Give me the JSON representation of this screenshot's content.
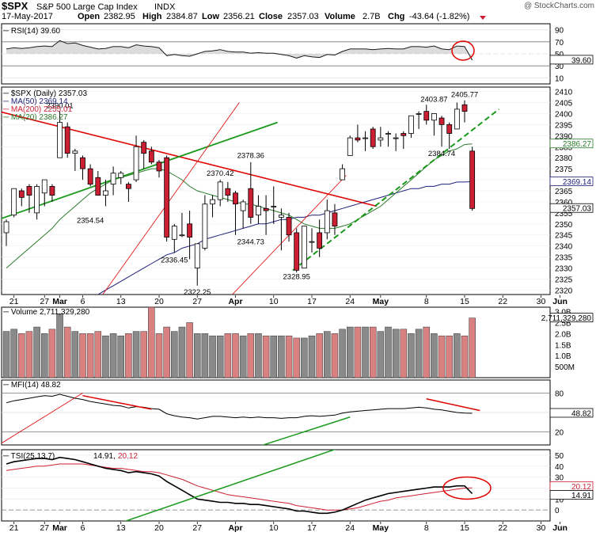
{
  "header": {
    "symbol": "$SPX",
    "name": "S&P 500 Large Cap Index",
    "exchange": "INDX",
    "watermark": "@ StockCharts.com",
    "date": "17-May-2017",
    "open_label": "Open",
    "open": "2382.95",
    "high_label": "High",
    "high": "2384.87",
    "low_label": "Low",
    "low": "2356.21",
    "close_label": "Close",
    "close": "2357.03",
    "volume_label": "Volume",
    "volume": "2.7B",
    "chg_label": "Chg",
    "chg": "-43.64 (-1.82%)"
  },
  "colors": {
    "up": "#ffffff",
    "down": "#cc1f33",
    "candle_outline": "#000000",
    "ma50": "#1f1f7a",
    "ma200": "#cc1f33",
    "ma20": "#2a7a2a",
    "trend_red": "#e00000",
    "trend_green": "#1a9a1a",
    "vol_up": "#8a8a8a",
    "vol_down": "#d98080",
    "grid": "#dddddd"
  },
  "rsi_panel": {
    "label": "RSI(14) 39.60",
    "ticks": [
      "90",
      "70",
      "50",
      "30",
      "10"
    ],
    "value_tag": "39.60"
  },
  "price_panel": {
    "label": "$SPX (Daily) 2357.03",
    "ma50_label": "MA(50) 2369.14",
    "ma200_label": "MA(200) 2255.01",
    "ma20_label": "MA(20) 2386.27",
    "ticks": [
      "2410",
      "2405",
      "2400",
      "2395",
      "2390",
      "2385",
      "2380",
      "2375",
      "2370",
      "2365",
      "2360",
      "2355",
      "2350",
      "2345",
      "2340",
      "2335",
      "2330",
      "2325",
      "2320"
    ],
    "tags": {
      "ma20": "2386.27",
      "ma50": "2369.14",
      "close": "2357.03"
    },
    "annotations": [
      "2390.01",
      "2354.54",
      "2336.45",
      "2322.25",
      "2370.42",
      "2344.73",
      "2378.36",
      "2328.95",
      "2403.87",
      "2405.77",
      "2384.74"
    ]
  },
  "x_axis": {
    "labels": [
      "21",
      "27",
      "Mar",
      "6",
      "13",
      "20",
      "27",
      "Apr",
      "10",
      "17",
      "24",
      "May",
      "8",
      "15",
      "22",
      "30",
      "Jun"
    ]
  },
  "volume_panel": {
    "label": "Volume 2,711,329,280",
    "ticks": [
      "3.0B",
      "2.5B",
      "2.0B",
      "1.5B",
      "1.0B",
      "500M"
    ],
    "value_tag": "2,711,329,280"
  },
  "mfi_panel": {
    "label": "MFI(14) 48.82",
    "ticks": [
      "80",
      "50",
      "20"
    ],
    "value_tag": "48.82"
  },
  "tsi_panel": {
    "label": "TSI(25,13,7)",
    "value_1": "14.91",
    "value_2": "20.12",
    "ticks": [
      "50",
      "40",
      "30",
      "20",
      "10",
      "0"
    ],
    "tags": [
      "20.12",
      "14.91"
    ]
  },
  "chart_data": {
    "type": "candlestick",
    "title": "$SPX S&P 500 Large Cap Index INDX",
    "x": [
      "2017-02-17",
      "2017-02-21",
      "2017-02-22",
      "2017-02-23",
      "2017-02-24",
      "2017-02-27",
      "2017-02-28",
      "2017-03-01",
      "2017-03-02",
      "2017-03-03",
      "2017-03-06",
      "2017-03-07",
      "2017-03-08",
      "2017-03-09",
      "2017-03-10",
      "2017-03-13",
      "2017-03-14",
      "2017-03-15",
      "2017-03-16",
      "2017-03-17",
      "2017-03-20",
      "2017-03-21",
      "2017-03-22",
      "2017-03-23",
      "2017-03-24",
      "2017-03-27",
      "2017-03-28",
      "2017-03-29",
      "2017-03-30",
      "2017-03-31",
      "2017-04-03",
      "2017-04-04",
      "2017-04-05",
      "2017-04-06",
      "2017-04-07",
      "2017-04-10",
      "2017-04-11",
      "2017-04-12",
      "2017-04-13",
      "2017-04-17",
      "2017-04-18",
      "2017-04-19",
      "2017-04-20",
      "2017-04-21",
      "2017-04-24",
      "2017-04-25",
      "2017-04-26",
      "2017-04-27",
      "2017-04-28",
      "2017-05-01",
      "2017-05-02",
      "2017-05-03",
      "2017-05-04",
      "2017-05-05",
      "2017-05-08",
      "2017-05-09",
      "2017-05-10",
      "2017-05-11",
      "2017-05-12",
      "2017-05-15",
      "2017-05-16",
      "2017-05-17"
    ],
    "ohlc": [
      [
        2346,
        2352,
        2340,
        2351
      ],
      [
        2354,
        2366,
        2353,
        2366
      ],
      [
        2365,
        2366,
        2358,
        2362
      ],
      [
        2367,
        2368,
        2355,
        2363
      ],
      [
        2355,
        2368,
        2352,
        2367
      ],
      [
        2364,
        2370,
        2358,
        2370
      ],
      [
        2367,
        2368,
        2360,
        2363
      ],
      [
        2380,
        2401,
        2380,
        2396
      ],
      [
        2394,
        2396,
        2380,
        2382
      ],
      [
        2382,
        2384,
        2374,
        2383
      ],
      [
        2380,
        2381,
        2370,
        2375
      ],
      [
        2375,
        2377,
        2367,
        2368
      ],
      [
        2371,
        2374,
        2363,
        2363
      ],
      [
        2363,
        2370,
        2358,
        2365
      ],
      [
        2368,
        2376,
        2363,
        2373
      ],
      [
        2371,
        2374,
        2368,
        2373
      ],
      [
        2368,
        2369,
        2360,
        2366
      ],
      [
        2370,
        2390,
        2369,
        2385
      ],
      [
        2387,
        2388,
        2375,
        2382
      ],
      [
        2383,
        2385,
        2377,
        2378
      ],
      [
        2378,
        2379,
        2371,
        2374
      ],
      [
        2380,
        2381,
        2342,
        2344
      ],
      [
        2343,
        2350,
        2337,
        2349
      ],
      [
        2345,
        2355,
        2344,
        2345
      ],
      [
        2350,
        2356,
        2334,
        2344
      ],
      [
        2330,
        2341,
        2322,
        2341
      ],
      [
        2339,
        2363,
        2338,
        2359
      ],
      [
        2359,
        2363,
        2353,
        2361
      ],
      [
        2361,
        2370,
        2358,
        2369
      ],
      [
        2366,
        2369,
        2360,
        2363
      ],
      [
        2364,
        2365,
        2345,
        2359
      ],
      [
        2356,
        2361,
        2348,
        2360
      ],
      [
        2366,
        2378,
        2350,
        2353
      ],
      [
        2354,
        2363,
        2350,
        2358
      ],
      [
        2357,
        2363,
        2345,
        2356
      ],
      [
        2358,
        2367,
        2350,
        2358
      ],
      [
        2353,
        2357,
        2338,
        2354
      ],
      [
        2353,
        2355,
        2342,
        2345
      ],
      [
        2346,
        2348,
        2328,
        2329
      ],
      [
        2330,
        2349,
        2330,
        2349
      ],
      [
        2342,
        2348,
        2337,
        2342
      ],
      [
        2346,
        2352,
        2335,
        2339
      ],
      [
        2346,
        2361,
        2343,
        2356
      ],
      [
        2355,
        2359,
        2345,
        2349
      ],
      [
        2370,
        2377,
        2370,
        2375
      ],
      [
        2381,
        2390,
        2381,
        2389
      ],
      [
        2389,
        2395,
        2387,
        2388
      ],
      [
        2389,
        2392,
        2383,
        2389
      ],
      [
        2393,
        2394,
        2384,
        2385
      ],
      [
        2388,
        2394,
        2385,
        2389
      ],
      [
        2391,
        2392,
        2385,
        2391
      ],
      [
        2389,
        2391,
        2383,
        2389
      ],
      [
        2391,
        2392,
        2384,
        2390
      ],
      [
        2391,
        2399,
        2389,
        2399
      ],
      [
        2400,
        2401,
        2393,
        2400
      ],
      [
        2401,
        2404,
        2395,
        2397
      ],
      [
        2397,
        2400,
        2390,
        2400
      ],
      [
        2398,
        2399,
        2385,
        2395
      ],
      [
        2395,
        2396,
        2384,
        2391
      ],
      [
        2393,
        2405,
        2393,
        2402
      ],
      [
        2404,
        2406,
        2396,
        2401
      ],
      [
        2383,
        2385,
        2356,
        2357
      ]
    ],
    "ma20": [
      2330,
      2333,
      2336,
      2339,
      2342,
      2345,
      2348,
      2352,
      2355,
      2358,
      2361,
      2364,
      2366,
      2368,
      2370,
      2371,
      2372,
      2373,
      2374,
      2375,
      2375,
      2374,
      2372,
      2370,
      2367,
      2365,
      2364,
      2363,
      2362,
      2361,
      2360,
      2359,
      2359,
      2358,
      2357,
      2356,
      2355,
      2354,
      2352,
      2350,
      2349,
      2348,
      2348,
      2348,
      2349,
      2350,
      2352,
      2354,
      2356,
      2358,
      2361,
      2364,
      2367,
      2370,
      2373,
      2376,
      2379,
      2381,
      2383,
      2384,
      2386,
      2386.27
    ],
    "ma50": [
      2286,
      2289,
      2292,
      2295,
      2298,
      2300,
      2302,
      2305,
      2308,
      2311,
      2313,
      2315,
      2318,
      2320,
      2322,
      2324,
      2326,
      2328,
      2330,
      2332,
      2334,
      2336,
      2337,
      2339,
      2340,
      2341,
      2343,
      2344,
      2345,
      2346,
      2347,
      2348,
      2349,
      2350,
      2350,
      2351,
      2352,
      2352,
      2353,
      2353,
      2354,
      2354,
      2355,
      2356,
      2357,
      2358,
      2359,
      2360,
      2361,
      2362,
      2363,
      2364,
      2365,
      2366,
      2366,
      2367,
      2367,
      2368,
      2368,
      2369,
      2369,
      2369.14
    ],
    "ma200_last": 2255.01,
    "rsi": [
      58,
      60,
      59,
      60,
      62,
      63,
      62,
      72,
      67,
      68,
      64,
      61,
      58,
      59,
      62,
      62,
      60,
      65,
      63,
      62,
      60,
      47,
      49,
      47,
      46,
      50,
      54,
      55,
      57,
      54,
      53,
      53,
      51,
      52,
      51,
      51,
      49,
      47,
      43,
      47,
      45,
      44,
      49,
      48,
      54,
      58,
      58,
      58,
      57,
      58,
      59,
      58,
      58,
      62,
      62,
      61,
      63,
      58,
      57,
      63,
      62,
      39.6
    ],
    "volume": [
      2.1,
      2.2,
      2.0,
      2.1,
      2.3,
      2.0,
      2.2,
      2.9,
      2.3,
      2.1,
      2.0,
      2.0,
      2.1,
      1.9,
      2.0,
      1.9,
      2.0,
      2.1,
      2.1,
      3.2,
      2.0,
      2.3,
      2.1,
      2.3,
      2.5,
      2.0,
      2.0,
      1.9,
      1.9,
      2.0,
      2.0,
      1.9,
      2.0,
      2.0,
      1.9,
      1.9,
      1.9,
      1.9,
      1.8,
      1.8,
      1.9,
      2.0,
      2.1,
      2.0,
      2.2,
      2.3,
      2.3,
      2.3,
      2.3,
      2.1,
      2.3,
      2.2,
      2.2,
      2.0,
      2.2,
      2.3,
      2.0,
      1.9,
      1.9,
      2.0,
      1.9,
      2.71
    ],
    "mfi": [
      65,
      68,
      70,
      72,
      74,
      76,
      75,
      78,
      75,
      72,
      70,
      67,
      65,
      63,
      61,
      60,
      57,
      59,
      58,
      56,
      55,
      48,
      45,
      43,
      42,
      40,
      42,
      44,
      44,
      43,
      42,
      43,
      42,
      43,
      42,
      42,
      41,
      42,
      42,
      44,
      45,
      44,
      45,
      46,
      49,
      51,
      52,
      53,
      54,
      55,
      56,
      56,
      56,
      57,
      58,
      57,
      55,
      54,
      52,
      50,
      49,
      48.82
    ],
    "tsi": [
      42,
      44,
      45,
      46,
      47,
      47,
      46,
      48,
      47,
      46,
      44,
      42,
      40,
      38,
      37,
      36,
      34,
      35,
      34,
      33,
      31,
      26,
      22,
      18,
      14,
      10,
      9,
      8,
      7,
      7,
      6,
      6,
      5,
      5,
      4,
      3,
      2,
      1,
      -1,
      -1,
      -2,
      -3,
      -3,
      -2,
      0,
      3,
      6,
      9,
      11,
      13,
      15,
      16,
      17,
      18,
      19,
      20,
      21,
      21,
      21,
      22,
      22,
      14.91
    ],
    "tsi_signal": [
      36,
      37,
      38,
      39,
      40,
      40,
      41,
      42,
      42,
      42,
      42,
      41,
      40,
      39,
      38,
      38,
      37,
      36,
      35,
      35,
      34,
      32,
      30,
      28,
      25,
      22,
      20,
      18,
      16,
      14,
      13,
      12,
      11,
      10,
      9,
      8,
      7,
      6,
      4,
      3,
      2,
      1,
      0,
      0,
      0,
      1,
      2,
      4,
      6,
      8,
      9,
      11,
      12,
      13,
      14,
      15,
      16,
      17,
      18,
      19,
      20,
      20.12
    ],
    "rsi_ticks": [
      10,
      30,
      50,
      70,
      90
    ],
    "mfi_ticks": [
      20,
      50,
      80
    ],
    "tsi_ticks": [
      0,
      10,
      20,
      30,
      40,
      50
    ],
    "ylim_price": [
      2318,
      2412
    ]
  }
}
